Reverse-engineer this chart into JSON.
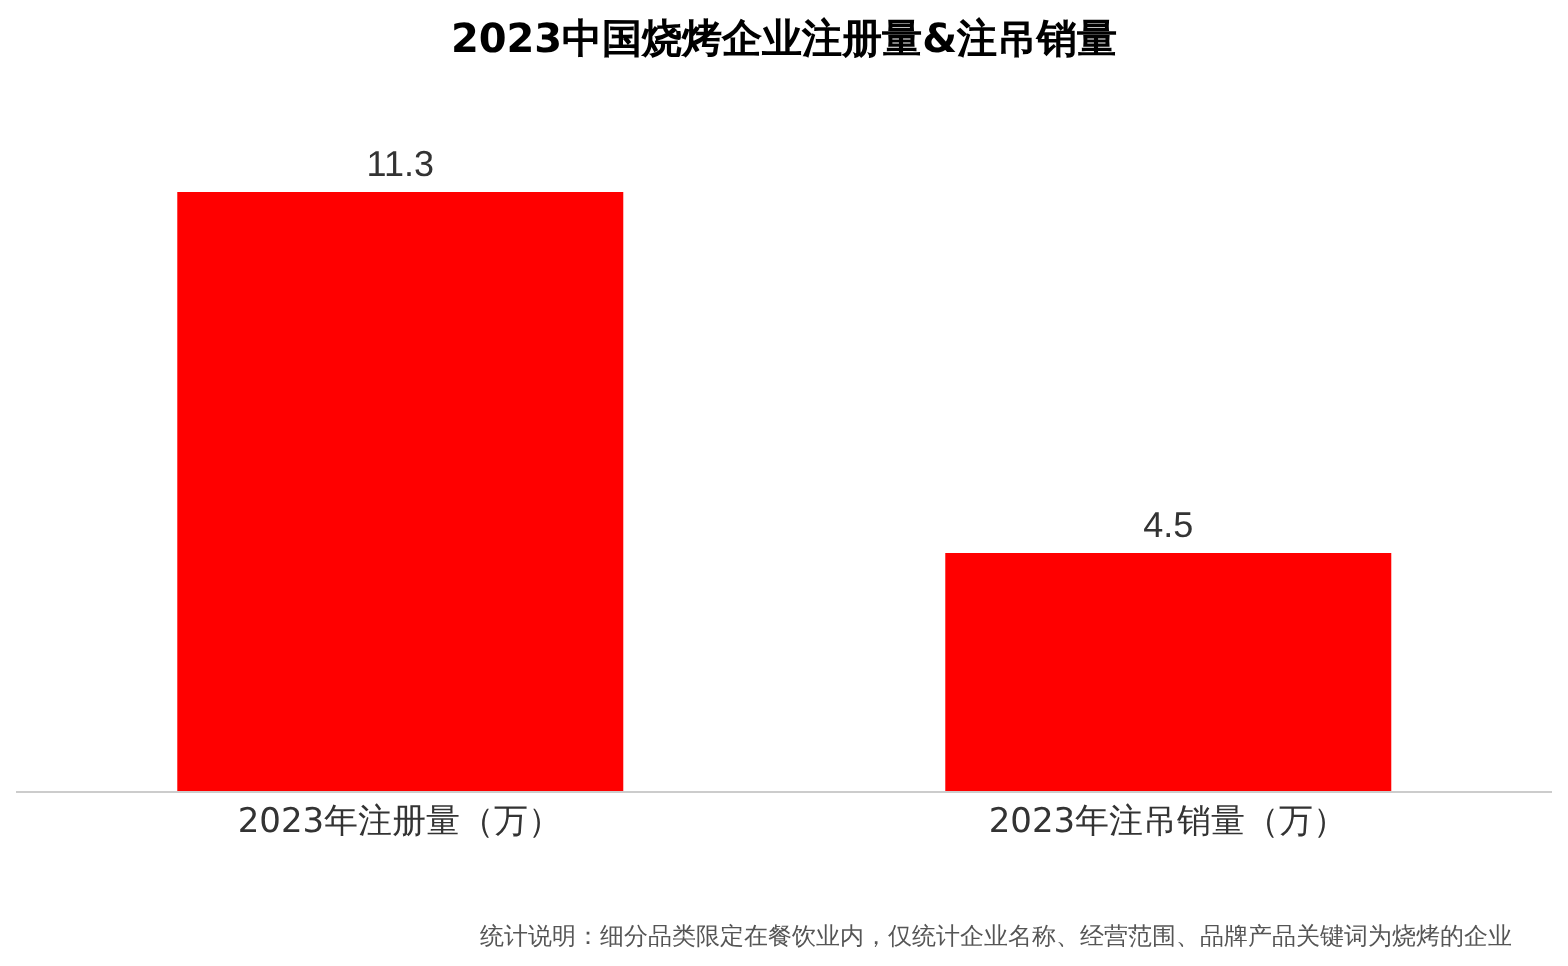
{
  "chart_data": {
    "type": "bar",
    "title": "2023中国烧烤企业注册量&注吊销量",
    "categories": [
      "2023年注册量（万）",
      "2023年注吊销量（万）"
    ],
    "values": [
      11.3,
      4.5
    ],
    "color": "#ff0000",
    "data_labels": true,
    "grid": false,
    "legend": false,
    "annotations": [
      "统计说明：细分品类限定在餐饮业内，仅统计企业名称、经营范围、品牌产品关键词为烧烤的企业"
    ]
  }
}
